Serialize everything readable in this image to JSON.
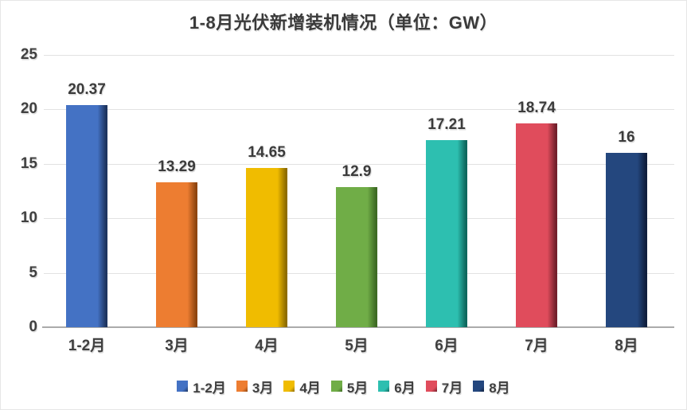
{
  "chart_data": {
    "type": "bar",
    "title": "1-8月光伏新增装机情况（单位：GW）",
    "unit": "GW",
    "categories": [
      "1-2月",
      "3月",
      "4月",
      "5月",
      "6月",
      "7月",
      "8月"
    ],
    "values": [
      20.37,
      13.29,
      14.65,
      12.9,
      17.21,
      18.74,
      16
    ],
    "value_labels": [
      "20.37",
      "13.29",
      "14.65",
      "12.9",
      "17.21",
      "18.74",
      "16"
    ],
    "bar_colors": [
      "#4472C4",
      "#ED7D31",
      "#F0BC00",
      "#70AD47",
      "#2DBFB0",
      "#E04C5C",
      "#24477E"
    ],
    "bar_edge_colors": [
      "#1E3560",
      "#8F4610",
      "#8F6D00",
      "#3E6B24",
      "#0E685E",
      "#73202C",
      "#0F1F3E"
    ],
    "ylim": [
      0,
      25
    ],
    "yticks": [
      0,
      5,
      10,
      15,
      20,
      25
    ],
    "grid": true,
    "legend_position": "bottom",
    "legend_labels": [
      "1-2月",
      "3月",
      "4月",
      "5月",
      "6月",
      "7月",
      "8月"
    ],
    "colors": {
      "gridline": "#E2E2E2",
      "axis_line": "#ABABAB",
      "label_text": "#3F3F3F",
      "title_text": "#3A3A3A",
      "background": "#FFFFFF"
    }
  }
}
